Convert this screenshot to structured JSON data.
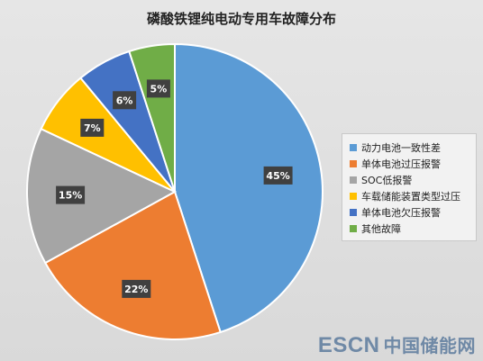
{
  "chart_data": {
    "type": "pie",
    "title": "磷酸铁锂纯电动专用车故障分布",
    "slices": [
      {
        "label": "动力电池一致性差",
        "value": 45,
        "display": "45%",
        "color": "#5b9bd5"
      },
      {
        "label": "单体电池过压报警",
        "value": 22,
        "display": "22%",
        "color": "#ed7d31"
      },
      {
        "label": "SOC低报警",
        "value": 15,
        "display": "15%",
        "color": "#a5a5a5"
      },
      {
        "label": "车载储能装置类型过压",
        "value": 7,
        "display": "7%",
        "color": "#ffc000"
      },
      {
        "label": "单体电池欠压报警",
        "value": 6,
        "display": "6%",
        "color": "#4472c4"
      },
      {
        "label": "其他故障",
        "value": 5,
        "display": "5%",
        "color": "#70ad47"
      }
    ],
    "legend_position": "right"
  },
  "watermark": {
    "latin": "ESCN",
    "chinese": "中国储能网"
  }
}
